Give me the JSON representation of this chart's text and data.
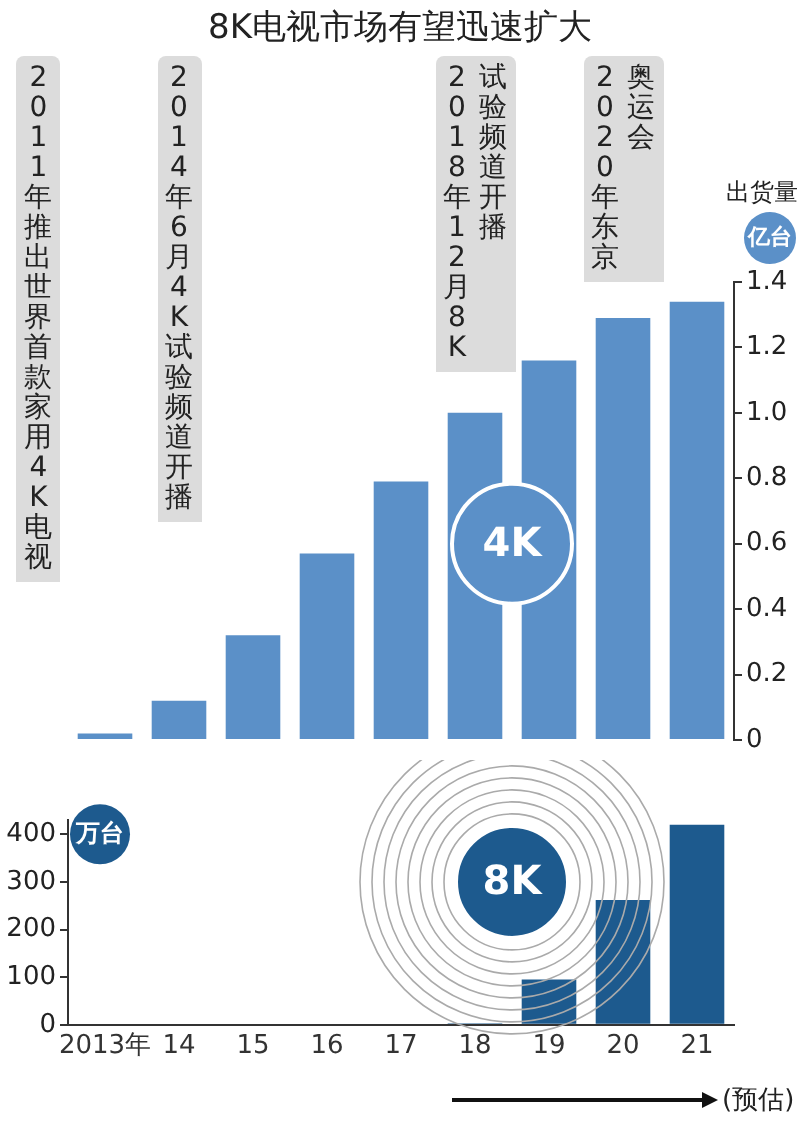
{
  "chart_data": [
    {
      "type": "bar",
      "title": "8K电视市场有望迅速扩大",
      "ylabel": "出货量",
      "categories": [
        null,
        null,
        null,
        null,
        null,
        null,
        null,
        null,
        null
      ],
      "series": [
        {
          "name": "4K",
          "color": "#5b90c8",
          "values": [
            0.02,
            0.12,
            0.32,
            0.57,
            0.79,
            1.0,
            1.16,
            1.29,
            1.34
          ]
        }
      ],
      "ylim": [
        0,
        1.4
      ],
      "yticks": [
        0,
        0.2,
        0.4,
        0.6,
        {
          "value": 0.8,
          "label": "0.8"
        },
        {
          "value": 1,
          "label": "1.0"
        },
        1.2,
        1.4
      ],
      "tick_labels": "y",
      "grid": false,
      "legend": false,
      "annotations": [
        "亿台",
        "2011年推出世界首款家用4K电视",
        "2014年6月4K试验频道开播",
        "2018年12月8K试验频道开播",
        "2020年东京奥运会"
      ]
    },
    {
      "type": "bar",
      "ylabel": "万台",
      "categories": [
        "2013年",
        "14",
        "15",
        "16",
        "17",
        "18",
        "19",
        "20",
        "21"
      ],
      "series": [
        {
          "name": "8K",
          "color": "#1d5a8e",
          "values": [
            0,
            0,
            0,
            0,
            0,
            3,
            95,
            262,
            420
          ]
        }
      ],
      "ylim": [
        0,
        430
      ],
      "yticks": [
        0,
        100,
        200,
        300,
        400
      ],
      "grid": false,
      "legend": false,
      "annotations": [
        "(预估)"
      ]
    }
  ]
}
